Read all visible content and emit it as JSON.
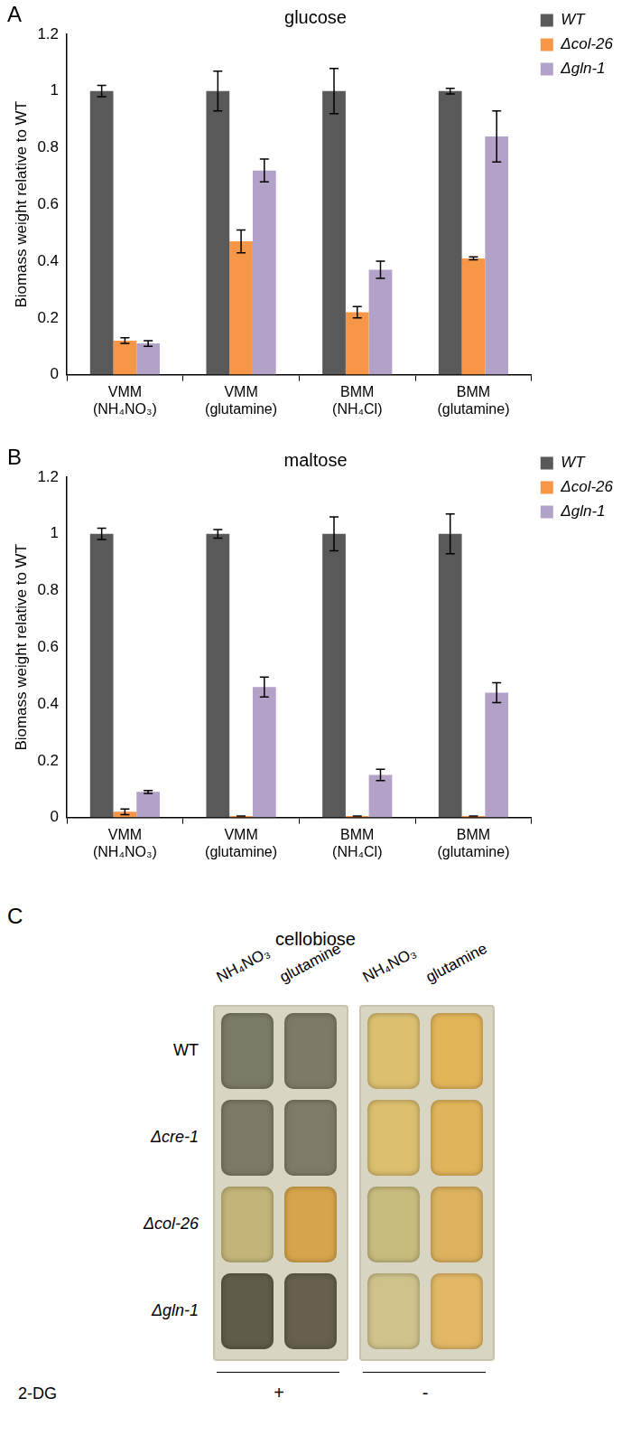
{
  "chart_data": [
    {
      "type": "bar",
      "title": "glucose",
      "annotations": [
        "A"
      ],
      "y_label": "Biomass weight relative to WT",
      "categories": [
        [
          "VMM",
          "(NH₄NO₃)"
        ],
        [
          "VMM",
          "(glutamine)"
        ],
        [
          "BMM",
          "(NH₄Cl)"
        ],
        [
          "BMM",
          "(glutamine)"
        ]
      ],
      "series": [
        {
          "name": "WT",
          "color": "#595959",
          "values": [
            1,
            1,
            1,
            1
          ],
          "errors": [
            0.02,
            0.07,
            0.08,
            0.01
          ]
        },
        {
          "name": "Δcol-26",
          "color": "#f79646",
          "values": [
            0.12,
            0.47,
            0.22,
            0.41
          ],
          "errors": [
            0.01,
            0.04,
            0.02,
            0.005
          ]
        },
        {
          "name": "Δgln-1",
          "color": "#b3a2c7",
          "values": [
            0.11,
            0.72,
            0.37,
            0.84
          ],
          "errors": [
            0.01,
            0.04,
            0.03,
            0.09
          ]
        }
      ],
      "ylim": [
        0,
        1.2
      ],
      "yticks": [
        0,
        0.2,
        0.4,
        0.6,
        0.8,
        1,
        1.2
      ],
      "grid": false,
      "legend": "right"
    },
    {
      "type": "bar",
      "title": "maltose",
      "annotations": [
        "B"
      ],
      "y_label": "Biomass weight relative to WT",
      "categories": [
        [
          "VMM",
          "(NH₄NO₃)"
        ],
        [
          "VMM",
          "(glutamine)"
        ],
        [
          "BMM",
          "(NH₄Cl)"
        ],
        [
          "BMM",
          "(glutamine)"
        ]
      ],
      "series": [
        {
          "name": "WT",
          "color": "#595959",
          "values": [
            1,
            1,
            1,
            1
          ],
          "errors": [
            0.02,
            0.015,
            0.06,
            0.07
          ]
        },
        {
          "name": "Δcol-26",
          "color": "#f79646",
          "values": [
            0.02,
            0.005,
            0.005,
            0.005
          ],
          "errors": [
            0.01,
            0,
            0,
            0
          ]
        },
        {
          "name": "Δgln-1",
          "color": "#b3a2c7",
          "values": [
            0.09,
            0.46,
            0.15,
            0.44
          ],
          "errors": [
            0.005,
            0.035,
            0.02,
            0.035
          ]
        }
      ],
      "ylim": [
        0,
        1.2
      ],
      "yticks": [
        0,
        0.2,
        0.4,
        0.6,
        0.8,
        1,
        1.2
      ],
      "grid": false,
      "legend": "right"
    }
  ],
  "panel_c": {
    "annotations": [
      "C"
    ],
    "title": "cellobiose",
    "columns": [
      "NH₄NO₃",
      "glutamine"
    ],
    "rows": [
      "WT",
      "Δcre-1",
      "Δcol-26",
      "Δgln-1"
    ],
    "treatment_label": "2-DG",
    "plates": [
      {
        "label": "+",
        "colors": [
          [
            "#7b7a66",
            "#7d7b67"
          ],
          [
            "#7c7a66",
            "#7e7c68"
          ],
          [
            "#c3b579",
            "#d6a44a"
          ],
          [
            "#5f5c4a",
            "#64604d"
          ]
        ]
      },
      {
        "label": "-",
        "colors": [
          [
            "#dcc070",
            "#e2b559"
          ],
          [
            "#dbbf6e",
            "#e0b45a"
          ],
          [
            "#c8bb7e",
            "#ddb25e"
          ],
          [
            "#cfc38c",
            "#e2b866"
          ]
        ]
      }
    ]
  }
}
